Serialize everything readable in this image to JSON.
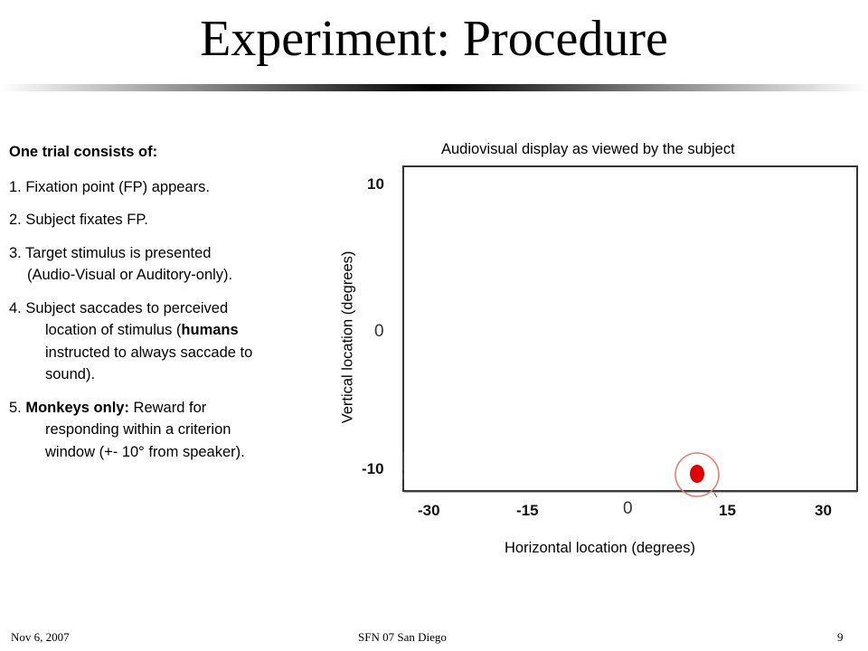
{
  "slide": {
    "title": "Experiment: Procedure"
  },
  "procedure": {
    "heading": "One trial consists of:",
    "step1": "1. Fixation point (FP) appears.",
    "step2": "2. Subject fixates FP.",
    "step3_a": "3. Target stimulus is presented",
    "step3_b": "(Audio-Visual or Auditory-only).",
    "step4_a": "4. Subject saccades to perceived",
    "step4_b": "location of stimulus (",
    "step4_b_bold": "humans",
    "step4_c": "instructed to always saccade to",
    "step4_d": "sound).",
    "step5_num": "5. ",
    "step5_bold": "Monkeys only:",
    "step5_a": " Reward for",
    "step5_b": "responding within a criterion",
    "step5_c": "window (+- 10° from speaker)."
  },
  "display_panel": {
    "title": "Audiovisual display as viewed by the subject",
    "y_axis_label": "Vertical location (degrees)",
    "x_axis_label": "Horizontal location (degrees)",
    "y_ticks": [
      "10",
      "0",
      "-10"
    ],
    "x_ticks": [
      "-30",
      "-15",
      "0",
      "15",
      "30"
    ],
    "target_color": "#e00000",
    "target_ring_color": "#e08070",
    "target": {
      "x_deg": 11,
      "y_deg": -10
    }
  },
  "footer": {
    "date": "Nov  6, 2007",
    "venue": "SFN 07 San Diego",
    "page": "9"
  }
}
